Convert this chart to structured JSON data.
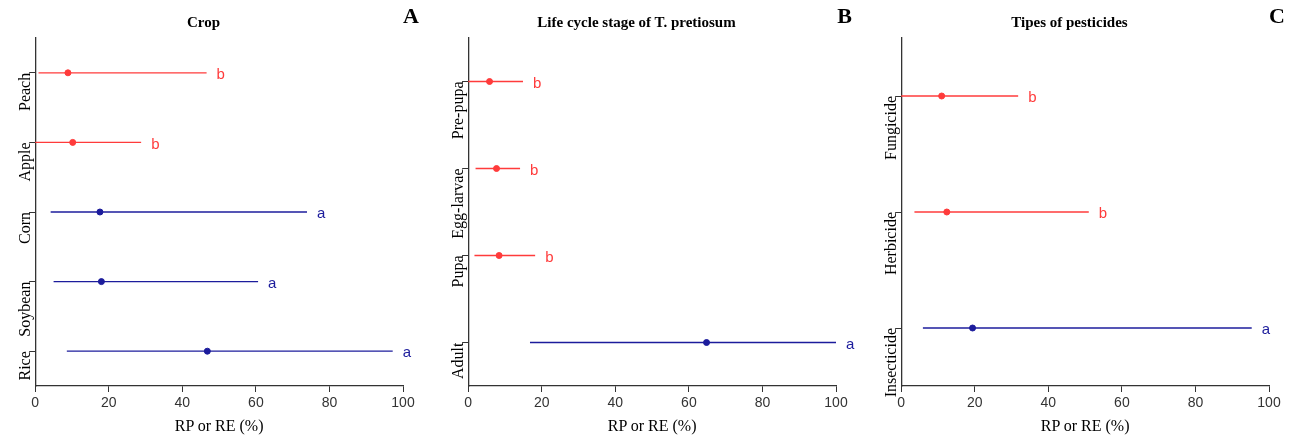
{
  "chart_data": [
    {
      "type": "scatter",
      "orientation": "horizontal",
      "title": "Crop",
      "xlabel": "RP or RE (%)",
      "categories": [
        "Peach",
        "Apple",
        "Corn",
        "Soybean",
        "Rice"
      ],
      "values": [
        8.9,
        10.2,
        17.6,
        18.0,
        46.8
      ],
      "errors": [
        [
          0.9,
          46.6
        ],
        [
          0,
          28.8
        ],
        [
          4.2,
          73.9
        ],
        [
          5.0,
          60.6
        ],
        [
          8.6,
          97.2
        ]
      ],
      "colors": [
        "#ff3b3b",
        "#ff3b3b",
        "#1c1c9c",
        "#1c1c9c",
        "#1c1c9c"
      ],
      "xlim": [
        0,
        100
      ],
      "xticks": [
        0,
        20,
        40,
        60,
        80,
        100
      ],
      "grid": false,
      "legend": false,
      "marker": "circle",
      "annotations": [
        "A",
        "b",
        "b",
        "a",
        "a",
        "a"
      ]
    },
    {
      "type": "scatter",
      "orientation": "horizontal",
      "title": "Life cycle stage of T. pretiosum",
      "xlabel": "RP or RE (%)",
      "categories": [
        "Pre-pupa",
        "Egg-larvae",
        "Pupa",
        "Adult"
      ],
      "values": [
        5.8,
        7.7,
        8.4,
        64.8
      ],
      "errors": [
        [
          0,
          14.9
        ],
        [
          2.0,
          14.1
        ],
        [
          1.7,
          18.2
        ],
        [
          16.8,
          100
        ]
      ],
      "colors": [
        "#ff3b3b",
        "#ff3b3b",
        "#ff3b3b",
        "#1c1c9c"
      ],
      "xlim": [
        0,
        100
      ],
      "xticks": [
        0,
        20,
        40,
        60,
        80,
        100
      ],
      "grid": false,
      "legend": false,
      "marker": "circle",
      "annotations": [
        "B",
        "b",
        "b",
        "b",
        "a"
      ]
    },
    {
      "type": "scatter",
      "orientation": "horizontal",
      "title": "Tipes of pesticides",
      "xlabel": "RP or RE (%)",
      "categories": [
        "Fungicide",
        "Herbicide",
        "Insecticide"
      ],
      "values": [
        11.0,
        12.4,
        19.4
      ],
      "errors": [
        [
          0,
          31.8
        ],
        [
          3.6,
          51.0
        ],
        [
          5.9,
          95.3
        ]
      ],
      "colors": [
        "#ff3b3b",
        "#ff3b3b",
        "#1c1c9c"
      ],
      "xlim": [
        0,
        100
      ],
      "xticks": [
        0,
        20,
        40,
        60,
        80,
        100
      ],
      "grid": false,
      "legend": false,
      "marker": "circle",
      "annotations": [
        "C",
        "b",
        "b",
        "a"
      ]
    }
  ]
}
